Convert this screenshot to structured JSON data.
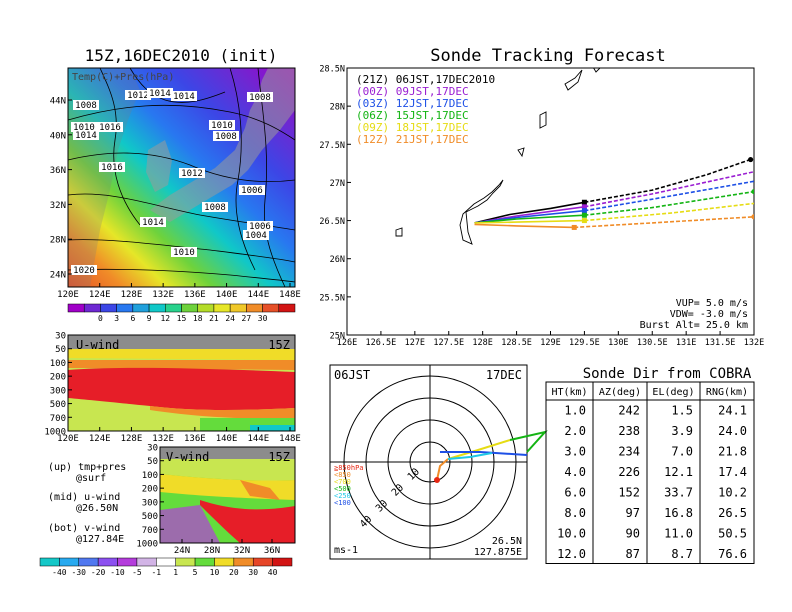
{
  "left_panel": {
    "title": "15Z,16DEC2010 (init)",
    "map": {
      "overlay_label": "Temp(C)+Pres(hPa)",
      "y_ticks": [
        "44N",
        "40N",
        "36N",
        "32N",
        "28N",
        "24N"
      ],
      "x_ticks": [
        "120E",
        "124E",
        "128E",
        "132E",
        "136E",
        "140E",
        "144E",
        "148E"
      ],
      "pressure_labels": [
        "1008",
        "1012",
        "1014",
        "1014",
        "1008",
        "1010",
        "1016",
        "1014",
        "1010",
        "1008",
        "1016",
        "1012",
        "1006",
        "1008",
        "1014",
        "1006",
        "1004",
        "1010",
        "1020"
      ]
    },
    "temp_colorbar": {
      "labels": [
        "0",
        "3",
        "6",
        "9",
        "12",
        "15",
        "18",
        "21",
        "24",
        "27",
        "30"
      ],
      "colors": [
        "#a000c8",
        "#6e28d2",
        "#3c46e6",
        "#2878f0",
        "#20a0dc",
        "#10c8c8",
        "#28d28c",
        "#6ed23c",
        "#b4dc28",
        "#e6e628",
        "#f0c828",
        "#f08c28",
        "#e65028",
        "#d21414"
      ]
    },
    "uwind": {
      "label": "U-wind",
      "time": "15Z",
      "y_ticks": [
        "30",
        "50",
        "100",
        "200",
        "300",
        "500",
        "700",
        "1000"
      ],
      "x_ticks": [
        "120E",
        "124E",
        "128E",
        "132E",
        "136E",
        "140E",
        "144E",
        "148E"
      ]
    },
    "vwind": {
      "label": "V-wind",
      "time": "15Z",
      "y_ticks": [
        "30",
        "50",
        "100",
        "200",
        "300",
        "500",
        "700",
        "1000"
      ],
      "x_ticks": [
        "24N",
        "28N",
        "32N",
        "36N"
      ]
    },
    "legend_notes": [
      "(up) tmp+pres",
      "@surf",
      "(mid) u-wind",
      "@26.50N",
      "(bot) v-wind",
      "@127.84E"
    ],
    "wind_colorbar": {
      "labels": [
        "-40",
        "-30",
        "-20",
        "-10",
        "-5",
        "-1",
        "1",
        "5",
        "10",
        "20",
        "30",
        "40"
      ],
      "colors": [
        "#14c8c8",
        "#28aaf0",
        "#5078f0",
        "#8c50f0",
        "#b43cdc",
        "#d2b4e6",
        "#ffffff",
        "#c8e650",
        "#64dc3c",
        "#f0dc28",
        "#f08c28",
        "#e64628",
        "#d21414"
      ]
    }
  },
  "tracking": {
    "title": "Sonde Tracking Forecast",
    "y_ticks": [
      "28.5N",
      "28N",
      "27.5N",
      "27N",
      "26.5N",
      "26N",
      "25.5N",
      "25N"
    ],
    "x_ticks": [
      "126E",
      "126.5E",
      "127E",
      "127.5E",
      "128E",
      "128.5E",
      "129E",
      "129.5E",
      "130E",
      "130.5E",
      "131E",
      "131.5E",
      "132E"
    ],
    "legend": [
      {
        "text": "(21Z) 06JST,17DEC2010",
        "color": "#000000"
      },
      {
        "text": "(00Z) 09JST,17DEC",
        "color": "#9a1ed2"
      },
      {
        "text": "(03Z) 12JST,17DEC",
        "color": "#1e50e6"
      },
      {
        "text": "(06Z) 15JST,17DEC",
        "color": "#14b414"
      },
      {
        "text": "(09Z) 18JST,17DEC",
        "color": "#e6dc14"
      },
      {
        "text": "(12Z) 21JST,17DEC",
        "color": "#f08c28"
      }
    ],
    "params": [
      "VUP= 5.0 m/s",
      "VDW= -3.0 m/s",
      "Burst Alt= 25.0 km"
    ]
  },
  "chart_data": {
    "type": "line",
    "xlim": [
      126.0,
      132.0
    ],
    "ylim": [
      25.0,
      28.5
    ],
    "series": [
      {
        "color": "#000000",
        "solid": [
          [
            127.88,
            26.47
          ],
          [
            128.4,
            26.58
          ],
          [
            129.0,
            26.66
          ],
          [
            129.5,
            26.74
          ]
        ],
        "dashed": [
          [
            129.5,
            26.74
          ],
          [
            130.5,
            26.9
          ],
          [
            131.3,
            27.1
          ],
          [
            131.95,
            27.3
          ]
        ]
      },
      {
        "color": "#9a1ed2",
        "solid": [
          [
            127.88,
            26.47
          ],
          [
            128.5,
            26.56
          ],
          [
            129.5,
            26.68
          ]
        ],
        "dashed": [
          [
            129.5,
            26.68
          ],
          [
            130.5,
            26.85
          ],
          [
            132.05,
            27.15
          ]
        ]
      },
      {
        "color": "#1e50e6",
        "solid": [
          [
            127.88,
            26.47
          ],
          [
            128.5,
            26.54
          ],
          [
            129.5,
            26.63
          ]
        ],
        "dashed": [
          [
            129.5,
            26.63
          ],
          [
            130.5,
            26.78
          ],
          [
            132.1,
            27.03
          ]
        ]
      },
      {
        "color": "#14b414",
        "solid": [
          [
            127.88,
            26.47
          ],
          [
            128.5,
            26.52
          ],
          [
            129.5,
            26.57
          ]
        ],
        "dashed": [
          [
            129.5,
            26.57
          ],
          [
            130.5,
            26.67
          ],
          [
            132.0,
            26.88
          ]
        ]
      },
      {
        "color": "#e6dc14",
        "solid": [
          [
            127.88,
            26.47
          ],
          [
            128.5,
            26.48
          ],
          [
            129.5,
            26.5
          ]
        ],
        "dashed": [
          [
            129.5,
            26.5
          ],
          [
            130.8,
            26.6
          ],
          [
            132.05,
            26.73
          ]
        ]
      },
      {
        "color": "#f08c28",
        "solid": [
          [
            127.88,
            26.45
          ],
          [
            128.5,
            26.43
          ],
          [
            129.35,
            26.41
          ]
        ],
        "dashed": [
          [
            129.35,
            26.41
          ],
          [
            130.5,
            26.47
          ],
          [
            132.0,
            26.55
          ]
        ]
      }
    ]
  },
  "polar": {
    "time_label": "06JST",
    "date_label": "17DEC",
    "ring_labels": [
      "10",
      "20",
      "30",
      "40"
    ],
    "alt_legend": [
      {
        "text": "≧850hPa",
        "color": "#e62814"
      },
      {
        "text": "<850",
        "color": "#f08c28"
      },
      {
        "text": "<700",
        "color": "#e6dc14"
      },
      {
        "text": "<500",
        "color": "#14b414"
      },
      {
        "text": "<250",
        "color": "#1ec8e6"
      },
      {
        "text": "<100",
        "color": "#1e50e6"
      }
    ],
    "units": "ms-1",
    "location_lat": "26.5N",
    "location_lon": "127.875E"
  },
  "cobra": {
    "title": "Sonde Dir from COBRA",
    "columns": [
      "HT(km)",
      "AZ(deg)",
      "EL(deg)",
      "RNG(km)"
    ],
    "rows": [
      [
        "1.0",
        "242",
        "1.5",
        "24.1"
      ],
      [
        "2.0",
        "238",
        "3.9",
        "24.0"
      ],
      [
        "3.0",
        "234",
        "7.0",
        "21.8"
      ],
      [
        "4.0",
        "226",
        "12.1",
        "17.4"
      ],
      [
        "6.0",
        "152",
        "33.7",
        "10.2"
      ],
      [
        "8.0",
        "97",
        "16.8",
        "26.5"
      ],
      [
        "10.0",
        "90",
        "11.0",
        "50.5"
      ],
      [
        "12.0",
        "87",
        "8.7",
        "76.6"
      ]
    ]
  }
}
